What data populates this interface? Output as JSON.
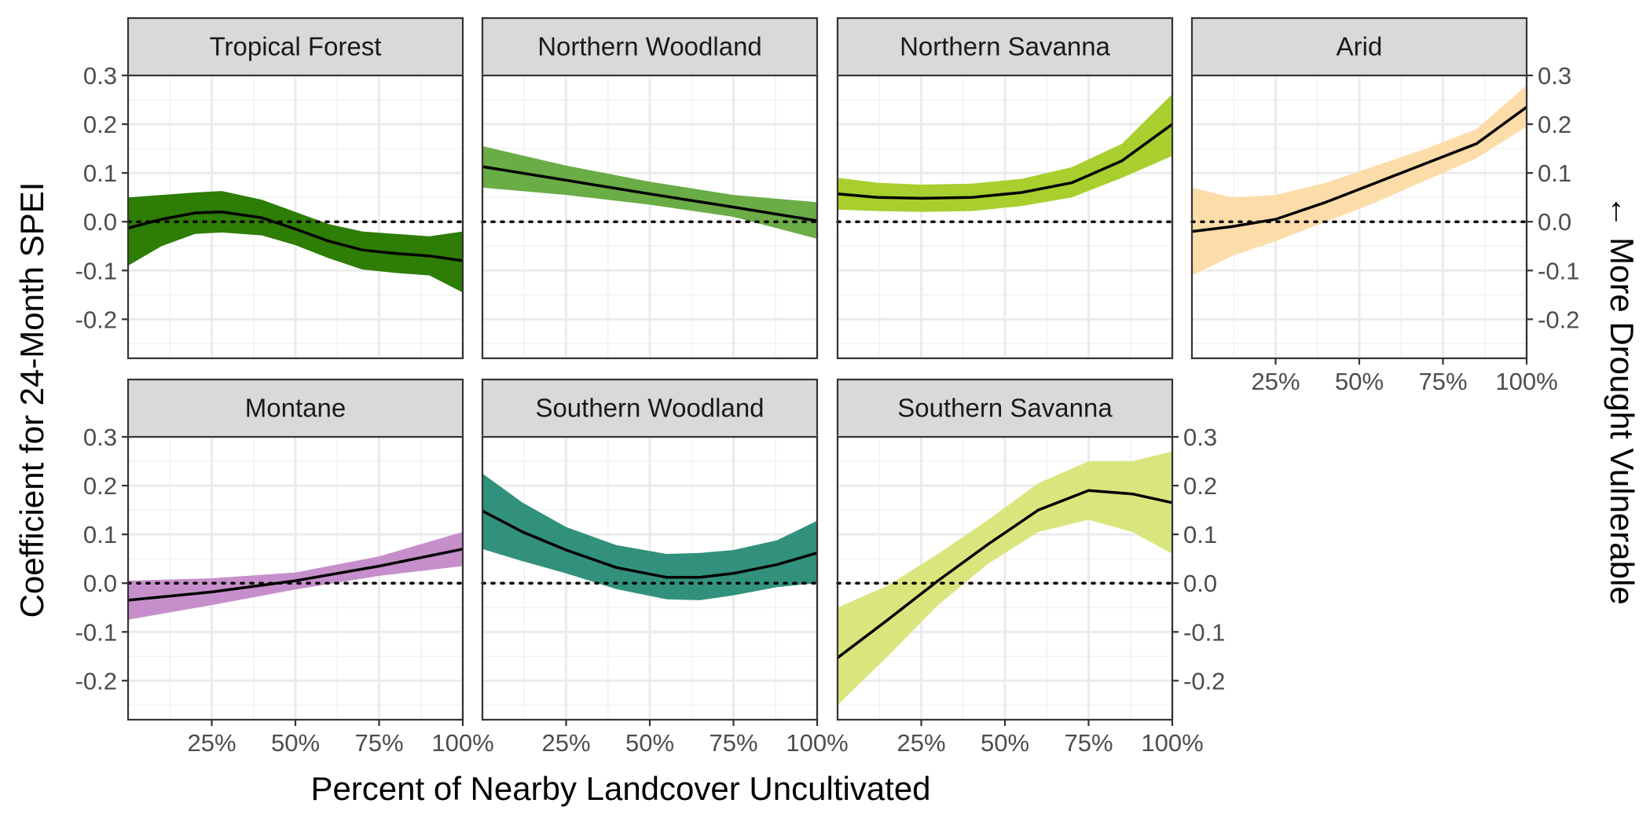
{
  "chart_data": {
    "type": "line",
    "xlabel": "Percent of Nearby Landcover Uncultivated",
    "ylabel": "Coefficient for 24-Month SPEI",
    "right_label": "← More Drought Vulnerable",
    "xlim": [
      0,
      100
    ],
    "ylim": [
      -0.28,
      0.3
    ],
    "x_ticks": [
      25,
      50,
      75,
      100
    ],
    "x_tick_labels": [
      "25%",
      "50%",
      "75%",
      "100%"
    ],
    "y_ticks": [
      -0.2,
      -0.1,
      0.0,
      0.1,
      0.2,
      0.3
    ],
    "y_tick_labels": [
      "-0.2",
      "-0.1",
      "0.0",
      "0.1",
      "0.2",
      "0.3"
    ],
    "reference_line": 0,
    "grid": true,
    "panels": [
      {
        "name": "Tropical Forest",
        "color": "#2e7d05",
        "x": [
          0,
          10,
          20,
          28,
          40,
          50,
          60,
          70,
          80,
          90,
          100
        ],
        "y": [
          -0.013,
          0.005,
          0.018,
          0.02,
          0.008,
          -0.015,
          -0.04,
          -0.058,
          -0.065,
          -0.07,
          -0.08
        ],
        "lower": [
          -0.09,
          -0.05,
          -0.025,
          -0.022,
          -0.028,
          -0.048,
          -0.075,
          -0.098,
          -0.105,
          -0.11,
          -0.145
        ],
        "upper": [
          0.05,
          0.055,
          0.06,
          0.063,
          0.045,
          0.02,
          -0.005,
          -0.02,
          -0.025,
          -0.03,
          -0.02
        ]
      },
      {
        "name": "Northern Woodland",
        "color": "#6aac46",
        "x": [
          0,
          25,
          50,
          75,
          100
        ],
        "y": [
          0.113,
          0.085,
          0.057,
          0.03,
          0.002
        ],
        "lower": [
          0.07,
          0.055,
          0.035,
          0.01,
          -0.035
        ],
        "upper": [
          0.155,
          0.115,
          0.082,
          0.055,
          0.04
        ]
      },
      {
        "name": "Northern Savanna",
        "color": "#a8cf2e",
        "x": [
          0,
          12,
          25,
          40,
          55,
          70,
          85,
          100
        ],
        "y": [
          0.057,
          0.05,
          0.048,
          0.05,
          0.06,
          0.08,
          0.125,
          0.2
        ],
        "lower": [
          0.025,
          0.022,
          0.02,
          0.022,
          0.032,
          0.05,
          0.09,
          0.135
        ],
        "upper": [
          0.09,
          0.08,
          0.076,
          0.078,
          0.088,
          0.112,
          0.16,
          0.262
        ]
      },
      {
        "name": "Arid",
        "color": "#fcddaa",
        "x": [
          0,
          12,
          25,
          40,
          55,
          70,
          85,
          100
        ],
        "y": [
          -0.02,
          -0.01,
          0.005,
          0.04,
          0.08,
          0.12,
          0.16,
          0.235
        ],
        "lower": [
          -0.11,
          -0.07,
          -0.04,
          0.0,
          0.04,
          0.085,
          0.13,
          0.195
        ],
        "upper": [
          0.07,
          0.05,
          0.055,
          0.08,
          0.115,
          0.15,
          0.19,
          0.28
        ]
      },
      {
        "name": "Montane",
        "color": "#c68fcb",
        "x": [
          0,
          25,
          50,
          75,
          100
        ],
        "y": [
          -0.035,
          -0.018,
          0.005,
          0.035,
          0.07
        ],
        "lower": [
          -0.075,
          -0.045,
          -0.013,
          0.015,
          0.035
        ],
        "upper": [
          0.005,
          0.01,
          0.022,
          0.055,
          0.105
        ]
      },
      {
        "name": "Southern Woodland",
        "color": "#32917c",
        "x": [
          0,
          12,
          25,
          40,
          55,
          65,
          75,
          88,
          100
        ],
        "y": [
          0.148,
          0.105,
          0.068,
          0.032,
          0.012,
          0.012,
          0.02,
          0.038,
          0.062
        ],
        "lower": [
          0.07,
          0.045,
          0.02,
          -0.012,
          -0.033,
          -0.035,
          -0.025,
          -0.008,
          0.0
        ],
        "upper": [
          0.225,
          0.165,
          0.115,
          0.078,
          0.06,
          0.062,
          0.068,
          0.088,
          0.128
        ]
      },
      {
        "name": "Southern Savanna",
        "color": "#dae67d",
        "x": [
          0,
          15,
          30,
          45,
          60,
          75,
          88,
          100
        ],
        "y": [
          -0.153,
          -0.075,
          0.005,
          0.08,
          0.15,
          0.19,
          0.183,
          0.165
        ],
        "lower": [
          -0.25,
          -0.15,
          -0.045,
          0.04,
          0.105,
          0.13,
          0.105,
          0.06
        ],
        "upper": [
          -0.05,
          -0.005,
          0.06,
          0.13,
          0.205,
          0.25,
          0.25,
          0.27
        ]
      }
    ]
  }
}
